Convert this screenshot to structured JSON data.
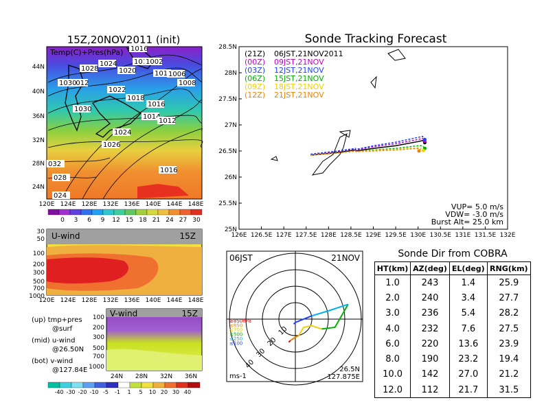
{
  "left_panels": {
    "init_title": "15Z,20NOV2011 (init)",
    "map_label": "Temp(C)+Pres(hPa)",
    "map_lat_labels": [
      "44N",
      "40N",
      "36N",
      "32N",
      "28N",
      "24N"
    ],
    "map_lon_labels": [
      "120E",
      "124E",
      "128E",
      "132E",
      "136E",
      "140E",
      "144E",
      "148E"
    ],
    "isobar_labels": [
      "1016",
      "1012",
      "1028",
      "1024",
      "1020",
      "1012",
      "1002",
      "1010",
      "1006",
      "1008",
      "1030",
      "1022",
      "1018",
      "1016",
      "1030",
      "1014",
      "1012",
      "1024",
      "1026",
      "032",
      "1016",
      "028",
      "024"
    ],
    "temp_colorbar_labels": [
      "0",
      "3",
      "6",
      "9",
      "12",
      "15",
      "18",
      "21",
      "24",
      "27",
      "30"
    ],
    "uwind_title": "U-wind",
    "uwind_time": "15Z",
    "uwind_levels": [
      "30",
      "50",
      "100",
      "200",
      "300",
      "500",
      "700",
      "1000"
    ],
    "uwind_lon_labels": [
      "120E",
      "124E",
      "128E",
      "132E",
      "136E",
      "140E",
      "144E",
      "148E"
    ],
    "vwind_title": "V-wind",
    "vwind_time": "15Z",
    "vwind_levels": [
      "100",
      "200",
      "300",
      "500",
      "700",
      "1000"
    ],
    "vwind_lat_labels": [
      "24N",
      "28N",
      "32N",
      "36N"
    ],
    "legend_up": "(up) tmp+pres",
    "legend_up2": "@surf",
    "legend_mid": "(mid) u-wind",
    "legend_mid2": "@26.50N",
    "legend_bot": "(bot) v-wind",
    "legend_bot2": "@127.84E",
    "wind_colorbar_labels": [
      "-40",
      "-30",
      "-20",
      "-10",
      "-5",
      "-1",
      "1",
      "5",
      "10",
      "20",
      "30",
      "40"
    ]
  },
  "tracking": {
    "title": "Sonde Tracking Forecast",
    "lat_labels": [
      "28.5N",
      "28N",
      "27.5N",
      "27N",
      "26.5N",
      "26N",
      "25.5N",
      "25N"
    ],
    "lon_labels": [
      "126E",
      "126.5E",
      "127E",
      "127.5E",
      "128E",
      "128.5E",
      "129E",
      "129.5E",
      "130E",
      "130.5E",
      "131E",
      "131.5E",
      "132E"
    ],
    "legend": [
      {
        "code": "(21Z)",
        "label": "06JST,21NOV2011",
        "color": "#000000"
      },
      {
        "code": "(00Z)",
        "label": "09JST,21NOV",
        "color": "#c000c0"
      },
      {
        "code": "(03Z)",
        "label": "12JST,21NOV",
        "color": "#2040ff"
      },
      {
        "code": "(06Z)",
        "label": "15JST,21NOV",
        "color": "#00b000"
      },
      {
        "code": "(09Z)",
        "label": "18JST,21NOV",
        "color": "#f0d000"
      },
      {
        "code": "(12Z)",
        "label": "21JST,21NOV",
        "color": "#f08000"
      }
    ],
    "vup": "VUP=  5.0 m/s",
    "vdw": "VDW= -3.0 m/s",
    "burst": "Burst Alt= 25.0 km"
  },
  "polar": {
    "time": "06JST",
    "date": "21NOV",
    "ring_labels": [
      "10",
      "20",
      "30",
      "40"
    ],
    "level_labels": [
      {
        "text": "≥850hPa",
        "color": "#e00000"
      },
      {
        "text": "≤850",
        "color": "#f08000"
      },
      {
        "text": "≤700",
        "color": "#f0d000"
      },
      {
        "text": "≤500",
        "color": "#00b000"
      },
      {
        "text": "≤250",
        "color": "#00b0f0"
      },
      {
        "text": "≤100",
        "color": "#2040ff"
      }
    ],
    "units": "ms-1",
    "lat": "26.5N",
    "lon": "127.875E"
  },
  "sonde_dir": {
    "title": "Sonde Dir from COBRA",
    "headers": [
      "HT(km)",
      "AZ(deg)",
      "EL(deg)",
      "RNG(km)"
    ],
    "rows": [
      [
        "1.0",
        "243",
        "1.4",
        "25.9"
      ],
      [
        "2.0",
        "240",
        "3.4",
        "27.7"
      ],
      [
        "3.0",
        "236",
        "5.4",
        "28.2"
      ],
      [
        "4.0",
        "232",
        "7.6",
        "27.5"
      ],
      [
        "6.0",
        "220",
        "13.6",
        "23.9"
      ],
      [
        "8.0",
        "190",
        "23.2",
        "19.4"
      ],
      [
        "10.0",
        "142",
        "27.0",
        "21.2"
      ],
      [
        "12.0",
        "112",
        "21.7",
        "31.5"
      ]
    ]
  },
  "chart_data": [
    {
      "type": "line",
      "title": "Sonde Tracking Forecast",
      "xlabel": "",
      "ylabel": "",
      "xlim": [
        126,
        132
      ],
      "ylim": [
        25,
        28.5
      ],
      "series": [
        {
          "name": "(21Z) 06JST,21NOV2011",
          "color": "#000000",
          "x": [
            127.6,
            128.2,
            128.6,
            128.61,
            129.0,
            129.5,
            130.0,
            130.1,
            130.15
          ],
          "y": [
            26.42,
            26.47,
            26.52,
            26.5,
            26.55,
            26.6,
            26.68,
            26.7,
            26.66
          ]
        },
        {
          "name": "(00Z) 09JST,21NOV",
          "color": "#c000c0",
          "x": [
            127.6,
            128.2,
            128.6,
            128.61,
            129.0,
            129.5,
            130.0,
            130.1,
            130.15
          ],
          "y": [
            26.43,
            26.49,
            26.54,
            26.52,
            26.58,
            26.64,
            26.72,
            26.74,
            26.69
          ]
        },
        {
          "name": "(03Z) 12JST,21NOV",
          "color": "#2040ff",
          "x": [
            127.6,
            128.2,
            128.6,
            128.61,
            129.0,
            129.5,
            130.0,
            130.1,
            130.15
          ],
          "y": [
            26.44,
            26.5,
            26.55,
            26.53,
            26.6,
            26.67,
            26.76,
            26.78,
            26.72
          ]
        },
        {
          "name": "(06Z) 15JST,21NOV",
          "color": "#00b000",
          "x": [
            127.6,
            128.2,
            128.6,
            128.61,
            129.0,
            129.5,
            130.0,
            130.1,
            130.15
          ],
          "y": [
            26.42,
            26.46,
            26.5,
            26.49,
            26.52,
            26.55,
            26.6,
            26.6,
            26.55
          ]
        },
        {
          "name": "(09Z) 18JST,21NOV",
          "color": "#f0d000",
          "x": [
            127.6,
            128.2,
            128.6,
            128.61,
            129.0,
            129.5,
            130.0,
            130.1,
            130.12
          ],
          "y": [
            26.42,
            26.46,
            26.5,
            26.49,
            26.51,
            26.53,
            26.56,
            26.55,
            26.51
          ]
        },
        {
          "name": "(12Z) 21JST,21NOV",
          "color": "#f08000",
          "x": [
            127.6,
            128.2,
            128.6,
            128.61,
            129.0,
            129.5,
            130.0,
            130.05,
            130.02
          ],
          "y": [
            26.42,
            26.46,
            26.5,
            26.49,
            26.5,
            26.52,
            26.55,
            26.53,
            26.5
          ]
        }
      ]
    },
    {
      "type": "table",
      "title": "Sonde Dir from COBRA",
      "columns": [
        "HT(km)",
        "AZ(deg)",
        "EL(deg)",
        "RNG(km)"
      ],
      "rows": [
        [
          1.0,
          243,
          1.4,
          25.9
        ],
        [
          2.0,
          240,
          3.4,
          27.7
        ],
        [
          3.0,
          236,
          5.4,
          28.2
        ],
        [
          4.0,
          232,
          7.6,
          27.5
        ],
        [
          6.0,
          220,
          13.6,
          23.9
        ],
        [
          8.0,
          190,
          23.2,
          19.4
        ],
        [
          10.0,
          142,
          27.0,
          21.2
        ],
        [
          12.0,
          112,
          21.7,
          31.5
        ]
      ]
    },
    {
      "type": "line",
      "title": "",
      "xlabel": "",
      "ylabel": "",
      "rlim": [
        0,
        40
      ],
      "series": [
        {
          "name": "≥850hPa",
          "color": "#e00000",
          "x": [
            -4,
            -3
          ],
          "y": [
            -14,
            -13
          ]
        },
        {
          "name": "≤850",
          "color": "#f08000",
          "x": [
            -3,
            0,
            2
          ],
          "y": [
            -13,
            -11,
            -10
          ]
        },
        {
          "name": "≤700",
          "color": "#f0d000",
          "x": [
            2,
            5,
            10,
            16
          ],
          "y": [
            -10,
            -5,
            -4,
            -6
          ]
        },
        {
          "name": "≤500",
          "color": "#00b000",
          "x": [
            16,
            24,
            32
          ],
          "y": [
            -6,
            -5,
            9
          ]
        },
        {
          "name": "≤250",
          "color": "#00b0f0",
          "x": [
            32,
            20,
            10
          ],
          "y": [
            9,
            5,
            2
          ]
        },
        {
          "name": "≤100",
          "color": "#2040ff",
          "x": [
            10,
            0,
            -1
          ],
          "y": [
            2,
            -2,
            -3
          ]
        }
      ]
    }
  ]
}
